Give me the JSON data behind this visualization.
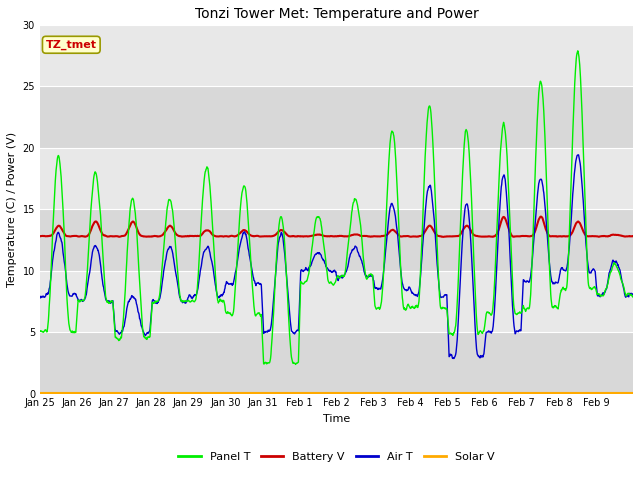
{
  "title": "Tonzi Tower Met: Temperature and Power",
  "xlabel": "Time",
  "ylabel": "Temperature (C) / Power (V)",
  "ylim": [
    0,
    30
  ],
  "yticks": [
    0,
    5,
    10,
    15,
    20,
    25,
    30
  ],
  "xtick_labels": [
    "Jan 25",
    "Jan 26",
    "Jan 27",
    "Jan 28",
    "Jan 29",
    "Jan 30",
    "Jan 31",
    "Feb 1",
    "Feb 2",
    "Feb 3",
    "Feb 4",
    "Feb 5",
    "Feb 6",
    "Feb 7",
    "Feb 8",
    "Feb 9"
  ],
  "figure_facecolor": "#ffffff",
  "axes_facecolor": "#e8e8e8",
  "grid_color": "#ffffff",
  "band_colors": [
    "#d8d8d8",
    "#e8e8e8"
  ],
  "annotation_text": "TZ_tmet",
  "annotation_color": "#cc0000",
  "annotation_bg": "#ffffcc",
  "annotation_edge": "#999900",
  "legend_entries": [
    "Panel T",
    "Battery V",
    "Air T",
    "Solar V"
  ],
  "panel_t_color": "#00ee00",
  "battery_v_color": "#cc0000",
  "air_t_color": "#0000cc",
  "solar_v_color": "#ffaa00",
  "line_width": 1.0,
  "title_fontsize": 10,
  "tick_fontsize": 7,
  "label_fontsize": 8,
  "legend_fontsize": 8
}
